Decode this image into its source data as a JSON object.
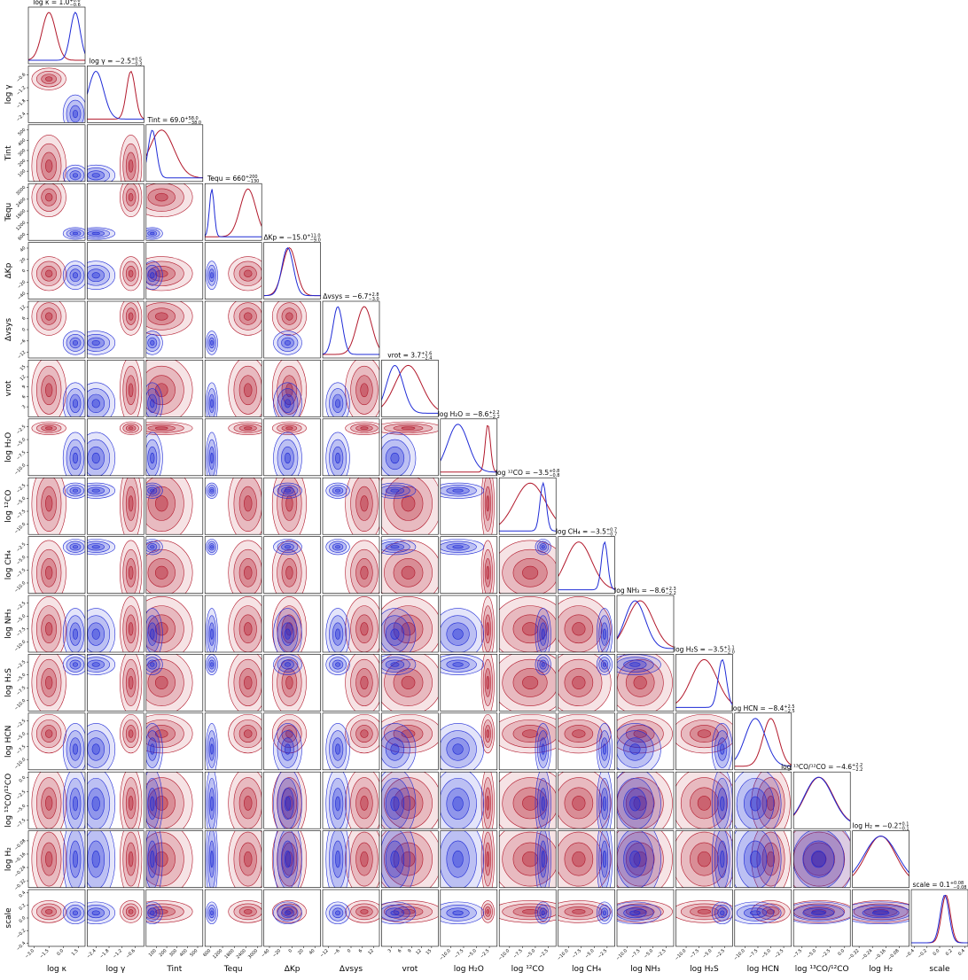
{
  "chart_data": {
    "type": "corner",
    "parameters": [
      {
        "label": "log κ",
        "title": "log κ = 1.0",
        "plus": "+0.6",
        "minus": "−0.6",
        "lim": [
          -3.6,
          2.2
        ],
        "ticks": [
          {
            "value": -3.0,
            "label": "−3.0"
          },
          {
            "value": -1.5,
            "label": "−1.5"
          },
          {
            "value": 0,
            "label": "0.0"
          },
          {
            "value": 1.5,
            "label": "1.5"
          }
        ]
      },
      {
        "label": "log γ",
        "title": "log γ = −2.5",
        "plus": "+0.5",
        "minus": "−0.3",
        "lim": [
          -2.8,
          -0.2
        ],
        "ticks": [
          {
            "value": -2.4,
            "label": "−2.4"
          },
          {
            "value": -1.8,
            "label": "−1.8"
          },
          {
            "value": -1.2,
            "label": "−1.2"
          },
          {
            "value": -0.6,
            "label": "−0.6"
          }
        ]
      },
      {
        "label": "Tint",
        "title": "Tint = 69.0",
        "plus": "+58.0",
        "minus": "−38.0",
        "lim": [
          0,
          550
        ],
        "ticks": [
          100,
          200,
          300,
          400,
          500
        ]
      },
      {
        "label": "Tequ",
        "title": "Tequ = 660",
        "plus": "+200",
        "minus": "−130",
        "lim": [
          300,
          3200
        ],
        "ticks": [
          600,
          1200,
          1800,
          2400,
          3000
        ]
      },
      {
        "label": "ΔKp",
        "title": "ΔKp = −15.0",
        "plus": "+11.0",
        "minus": "−9.0",
        "lim": [
          -50,
          50
        ],
        "ticks": [
          {
            "value": -40,
            "label": "−40"
          },
          {
            "value": -20,
            "label": "−20"
          },
          0,
          20,
          40
        ]
      },
      {
        "label": "Δvsys",
        "title": "Δvsys = −6.7",
        "plus": "+2.8",
        "minus": "−3.0",
        "lim": [
          -15,
          15
        ],
        "ticks": [
          {
            "value": -12,
            "label": "−12"
          },
          {
            "value": -6,
            "label": "−6"
          },
          0,
          6,
          12
        ]
      },
      {
        "label": "vrot",
        "title": "vrot = 3.7",
        "plus": "+2.6",
        "minus": "−2.4",
        "lim": [
          0,
          17
        ],
        "ticks": [
          3,
          6,
          9,
          12,
          15
        ]
      },
      {
        "label": "log H₂O",
        "title": "log H₂O = −8.6",
        "plus": "+2.2",
        "minus": "−2.2",
        "lim": [
          -12,
          -1
        ],
        "ticks": [
          {
            "value": -10,
            "label": "−10.0"
          },
          {
            "value": -7.5,
            "label": "−7.5"
          },
          {
            "value": -5,
            "label": "−5.0"
          },
          {
            "value": -2.5,
            "label": "−2.5"
          }
        ]
      },
      {
        "label": "log ¹²CO",
        "title": "log ¹²CO = −3.5",
        "plus": "+0.8",
        "minus": "−0.8",
        "lim": [
          -12,
          -1
        ],
        "ticks": [
          {
            "value": -10,
            "label": "−10.0"
          },
          {
            "value": -7.5,
            "label": "−7.5"
          },
          {
            "value": -5,
            "label": "−5.0"
          },
          {
            "value": -2.5,
            "label": "−2.5"
          }
        ]
      },
      {
        "label": "log CH₄",
        "title": "log CH₄ = −3.5",
        "plus": "+0.7",
        "minus": "−0.7",
        "lim": [
          -12,
          -1
        ],
        "ticks": [
          {
            "value": -10,
            "label": "−10.0"
          },
          {
            "value": -7.5,
            "label": "−7.5"
          },
          {
            "value": -5,
            "label": "−5.0"
          },
          {
            "value": -2.5,
            "label": "−2.5"
          }
        ]
      },
      {
        "label": "log NH₃",
        "title": "log NH₃ = −8.6",
        "plus": "+2.3",
        "minus": "−2.2",
        "lim": [
          -12,
          -1
        ],
        "ticks": [
          {
            "value": -10,
            "label": "−10.0"
          },
          {
            "value": -7.5,
            "label": "−7.5"
          },
          {
            "value": -5,
            "label": "−5.0"
          },
          {
            "value": -2.5,
            "label": "−2.5"
          }
        ]
      },
      {
        "label": "log H₂S",
        "title": "log H₂S = −3.5",
        "plus": "+1.1",
        "minus": "−2.0",
        "lim": [
          -12,
          -1
        ],
        "ticks": [
          {
            "value": -10,
            "label": "−10.0"
          },
          {
            "value": -7.5,
            "label": "−7.5"
          },
          {
            "value": -5,
            "label": "−5.0"
          },
          {
            "value": -2.5,
            "label": "−2.5"
          }
        ]
      },
      {
        "label": "log HCN",
        "title": "log HCN = −8.4",
        "plus": "+2.5",
        "minus": "−2.5",
        "lim": [
          -12,
          -1
        ],
        "ticks": [
          {
            "value": -10,
            "label": "−10.0"
          },
          {
            "value": -7.5,
            "label": "−7.5"
          },
          {
            "value": -5,
            "label": "−5.0"
          },
          {
            "value": -2.5,
            "label": "−2.5"
          }
        ]
      },
      {
        "label": "log ¹³CO/¹²CO",
        "title": "log ¹³CO/¹²CO = −4.6",
        "plus": "+2.2",
        "minus": "−2.2",
        "lim": [
          -9,
          1
        ],
        "ticks": [
          {
            "value": -7.5,
            "label": "−7.5"
          },
          {
            "value": -5,
            "label": "−5.0"
          },
          {
            "value": -2.5,
            "label": "−2.5"
          },
          {
            "value": 0,
            "label": "0.0"
          }
        ]
      },
      {
        "label": "log H₂",
        "title": "log H₂ = −0.2",
        "plus": "+0.1",
        "minus": "−0.1",
        "lim": [
          -0.36,
          -0.02
        ],
        "ticks": [
          {
            "value": -0.32,
            "label": "−0.32"
          },
          {
            "value": -0.24,
            "label": "−0.24"
          },
          {
            "value": -0.16,
            "label": "−0.16"
          },
          {
            "value": -0.08,
            "label": "−0.08"
          }
        ]
      },
      {
        "label": "scale",
        "title": "scale = 0.1",
        "plus": "+0.08",
        "minus": "−0.08",
        "lim": [
          -0.45,
          0.45
        ],
        "ticks": [
          {
            "value": -0.4,
            "label": "−0.4"
          },
          {
            "value": -0.2,
            "label": "−0.2"
          },
          {
            "value": 0,
            "label": "0.0"
          },
          0.2,
          0.4
        ]
      }
    ],
    "series": [
      {
        "color": "#b2182b",
        "peaks": [
          -1.5,
          -0.8,
          150,
          2500,
          -5,
          7,
          8,
          -2.8,
          -6,
          -8,
          -7.5,
          -6.5,
          -5,
          -4.5,
          -0.19,
          0.1
        ],
        "widths": [
          0.7,
          0.2,
          120,
          400,
          12,
          4,
          4,
          0.5,
          3,
          2.5,
          2.5,
          2.5,
          1.5,
          2.5,
          0.09,
          0.07
        ]
      },
      {
        "color": "#1f2bd6",
        "peaks": [
          1.2,
          -2.4,
          60,
          650,
          -8,
          -7,
          4,
          -8.6,
          -3.5,
          -3,
          -8.5,
          -3,
          -8,
          -4.6,
          -0.19,
          0.08
        ],
        "widths": [
          0.5,
          0.35,
          40,
          120,
          10,
          2.5,
          2.5,
          2,
          0.6,
          0.6,
          2,
          0.8,
          2,
          2.5,
          0.1,
          0.07
        ]
      }
    ]
  }
}
